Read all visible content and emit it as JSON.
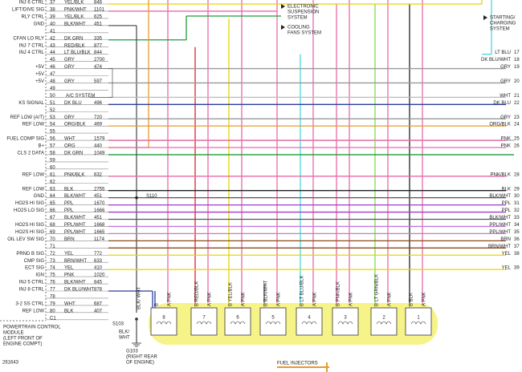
{
  "pins": [
    {
      "pin": "37",
      "wire": "YEL/BLK",
      "circuit": "846",
      "signal": "INJ 6 CTRL"
    },
    {
      "pin": "38",
      "wire": "PNK/WHT",
      "circuit": "1101",
      "signal": "LIFT/DIVE SIG"
    },
    {
      "pin": "39",
      "wire": "YEL/BLK",
      "circuit": "625",
      "signal": "RLY CTRL"
    },
    {
      "pin": "40",
      "wire": "BLK/WHT",
      "circuit": "451",
      "signal": "GND"
    },
    {
      "pin": "41"
    },
    {
      "pin": "42",
      "wire": "DK GRN",
      "circuit": "335",
      "signal": "CFAN LO RLY"
    },
    {
      "pin": "43",
      "wire": "RED/BLK",
      "circuit": "877",
      "signal": "INJ 7 CTRL"
    },
    {
      "pin": "44",
      "wire": "LT BLU/BLK",
      "circuit": "844",
      "signal": "INJ 4 CTRL"
    },
    {
      "pin": "45",
      "wire": "GRY",
      "circuit": "2700"
    },
    {
      "pin": "46",
      "wire": "GRY",
      "circuit": "474",
      "signal": "+5V"
    },
    {
      "pin": "47",
      "signal": "+5V"
    },
    {
      "pin": "48",
      "wire": "GRY",
      "circuit": "597",
      "signal": "+5V"
    },
    {
      "pin": "49"
    },
    {
      "pin": "50"
    },
    {
      "pin": "51",
      "wire": "DK BLU",
      "circuit": "496",
      "signal": "KS SIGNAL"
    },
    {
      "pin": "52"
    },
    {
      "pin": "53",
      "wire": "GRY",
      "circuit": "720",
      "signal": "REF LOW (A/T)"
    },
    {
      "pin": "54",
      "wire": "ORG/BLK",
      "circuit": "469",
      "signal": "REF LOW"
    },
    {
      "pin": "55"
    },
    {
      "pin": "56",
      "wire": "WHT",
      "circuit": "1579",
      "signal": "FUEL COMP SIG"
    },
    {
      "pin": "57",
      "wire": "ORG",
      "circuit": "440",
      "signal": "B+"
    },
    {
      "pin": "58",
      "wire": "DK GRN",
      "circuit": "1049",
      "signal": "CLS 2 DATA"
    },
    {
      "pin": "59"
    },
    {
      "pin": "60"
    },
    {
      "pin": "61",
      "wire": "PNK/BLK",
      "circuit": "632",
      "signal": "REF LOW"
    },
    {
      "pin": "62"
    },
    {
      "pin": "63",
      "wire": "BLK",
      "circuit": "2755",
      "signal": "REF LOW"
    },
    {
      "pin": "64",
      "wire": "BLK/WHT",
      "circuit": "451",
      "signal": "GND"
    },
    {
      "pin": "65",
      "wire": "PPL",
      "circuit": "1670",
      "signal": "HO2S HI SIG"
    },
    {
      "pin": "66",
      "wire": "PPL",
      "circuit": "1666",
      "signal": "HO2S LO SIG"
    },
    {
      "pin": "67",
      "wire": "BLK/WHT",
      "circuit": "451"
    },
    {
      "pin": "68",
      "wire": "PPL/WHT",
      "circuit": "1668",
      "signal": "HO2S HI SIG"
    },
    {
      "pin": "69",
      "wire": "PPL/WHT",
      "circuit": "1665",
      "signal": "HO2S HI SIG"
    },
    {
      "pin": "70",
      "wire": "BRN",
      "circuit": "1174",
      "signal": "OIL LEV SW SIG"
    },
    {
      "pin": "71"
    },
    {
      "pin": "72",
      "wire": "YEL",
      "circuit": "772",
      "signal": "PRND B SIG"
    },
    {
      "pin": "73",
      "wire": "BRN/WHT",
      "circuit": "633",
      "signal": "CMP SIG"
    },
    {
      "pin": "74",
      "wire": "YEL",
      "circuit": "410",
      "signal": "ECT SIG"
    },
    {
      "pin": "75",
      "wire": "PNK",
      "circuit": "1020",
      "signal": "IGN"
    },
    {
      "pin": "76",
      "wire": "BLK/WHT",
      "circuit": "845",
      "signal": "INJ 5 CTRL"
    },
    {
      "pin": "77",
      "wire": "DK BLU/WHT",
      "circuit": "878",
      "signal": "INJ 8 CTRL"
    },
    {
      "pin": "78"
    },
    {
      "pin": "79",
      "wire": "WHT",
      "circuit": "687",
      "signal": "3-2 SS CTRL"
    },
    {
      "pin": "80",
      "wire": "BLK",
      "circuit": "407",
      "signal": "REF LOW"
    },
    {
      "pin": "C1"
    }
  ],
  "ac_system": "A/C SYSTEM",
  "right_pins": [
    {
      "wire": "LT BLU",
      "pin": "17"
    },
    {
      "wire": "DK BLU/WHT",
      "pin": "18"
    },
    {
      "wire": "GRY",
      "pin": "19"
    },
    {
      "wire": "GRY",
      "pin": "20"
    },
    {
      "wire": "WHT",
      "pin": "21"
    },
    {
      "wire": "DK BLU",
      "pin": "22"
    },
    {
      "wire": "GRY",
      "pin": "23"
    },
    {
      "wire": "ORG/BLK",
      "pin": "24"
    },
    {
      "wire": "PNK",
      "pin": "25"
    },
    {
      "wire": "PNK",
      "pin": "26"
    },
    {
      "wire": "PNK/BLK",
      "pin": "28"
    },
    {
      "wire": "BLK",
      "pin": "29"
    },
    {
      "wire": "BLK/WHT",
      "pin": "30"
    },
    {
      "wire": "PPL",
      "pin": "31"
    },
    {
      "wire": "PPL",
      "pin": "32"
    },
    {
      "wire": "BLK/WHT",
      "pin": "33"
    },
    {
      "wire": "PPL/WHT",
      "pin": "34"
    },
    {
      "wire": "PPL/WHT",
      "pin": "35"
    },
    {
      "wire": "BRN",
      "pin": "36"
    },
    {
      "wire": "BRN/WHT",
      "pin": "37"
    },
    {
      "wire": "YEL",
      "pin": "38"
    },
    {
      "wire": "YEL",
      "pin": "39"
    }
  ],
  "systems": [
    {
      "lines": [
        "ELECTRONIC",
        "SUSPENSION",
        "SYSTEM"
      ]
    },
    {
      "lines": [
        "COOLING",
        "FANS SYSTEM"
      ]
    },
    {
      "lines": [
        "STARTING/",
        "CHARGING",
        "SYSTEM"
      ]
    }
  ],
  "injectors": [
    {
      "number": "8",
      "b": "B",
      "a": "A PNK"
    },
    {
      "number": "7",
      "b": "B RED/BLK",
      "a": "A PNK"
    },
    {
      "number": "6",
      "b": "B YEL/BLK",
      "a": "A PNK"
    },
    {
      "number": "5",
      "b": "B BLK/WHT",
      "a": "A PNK"
    },
    {
      "number": "4",
      "b": "B LT BLU/BLK",
      "a": "A PNK"
    },
    {
      "number": "3",
      "b": "B PNK/BLK",
      "a": "A PNK"
    },
    {
      "number": "2",
      "b": "B LT GRN/BLK",
      "a": "A PNK"
    },
    {
      "number": "1",
      "b": "B BLK",
      "a": "A PNK"
    }
  ],
  "pcm_label": [
    "POWERTRAIN CONTROL",
    "MODULE",
    "(LEFT FRONT OF",
    "ENGINE COMPT)"
  ],
  "splices": {
    "s110": "S110",
    "s103": "S103"
  },
  "ground_wire": [
    "BLK/",
    "WHT"
  ],
  "vertical_wire": "BLK/ WHT",
  "ground_label": [
    "G103",
    "(RIGHT REAR",
    "OF ENGINE)"
  ],
  "injectors_label": "FUEL INJECTORS",
  "figure_id": "261643"
}
